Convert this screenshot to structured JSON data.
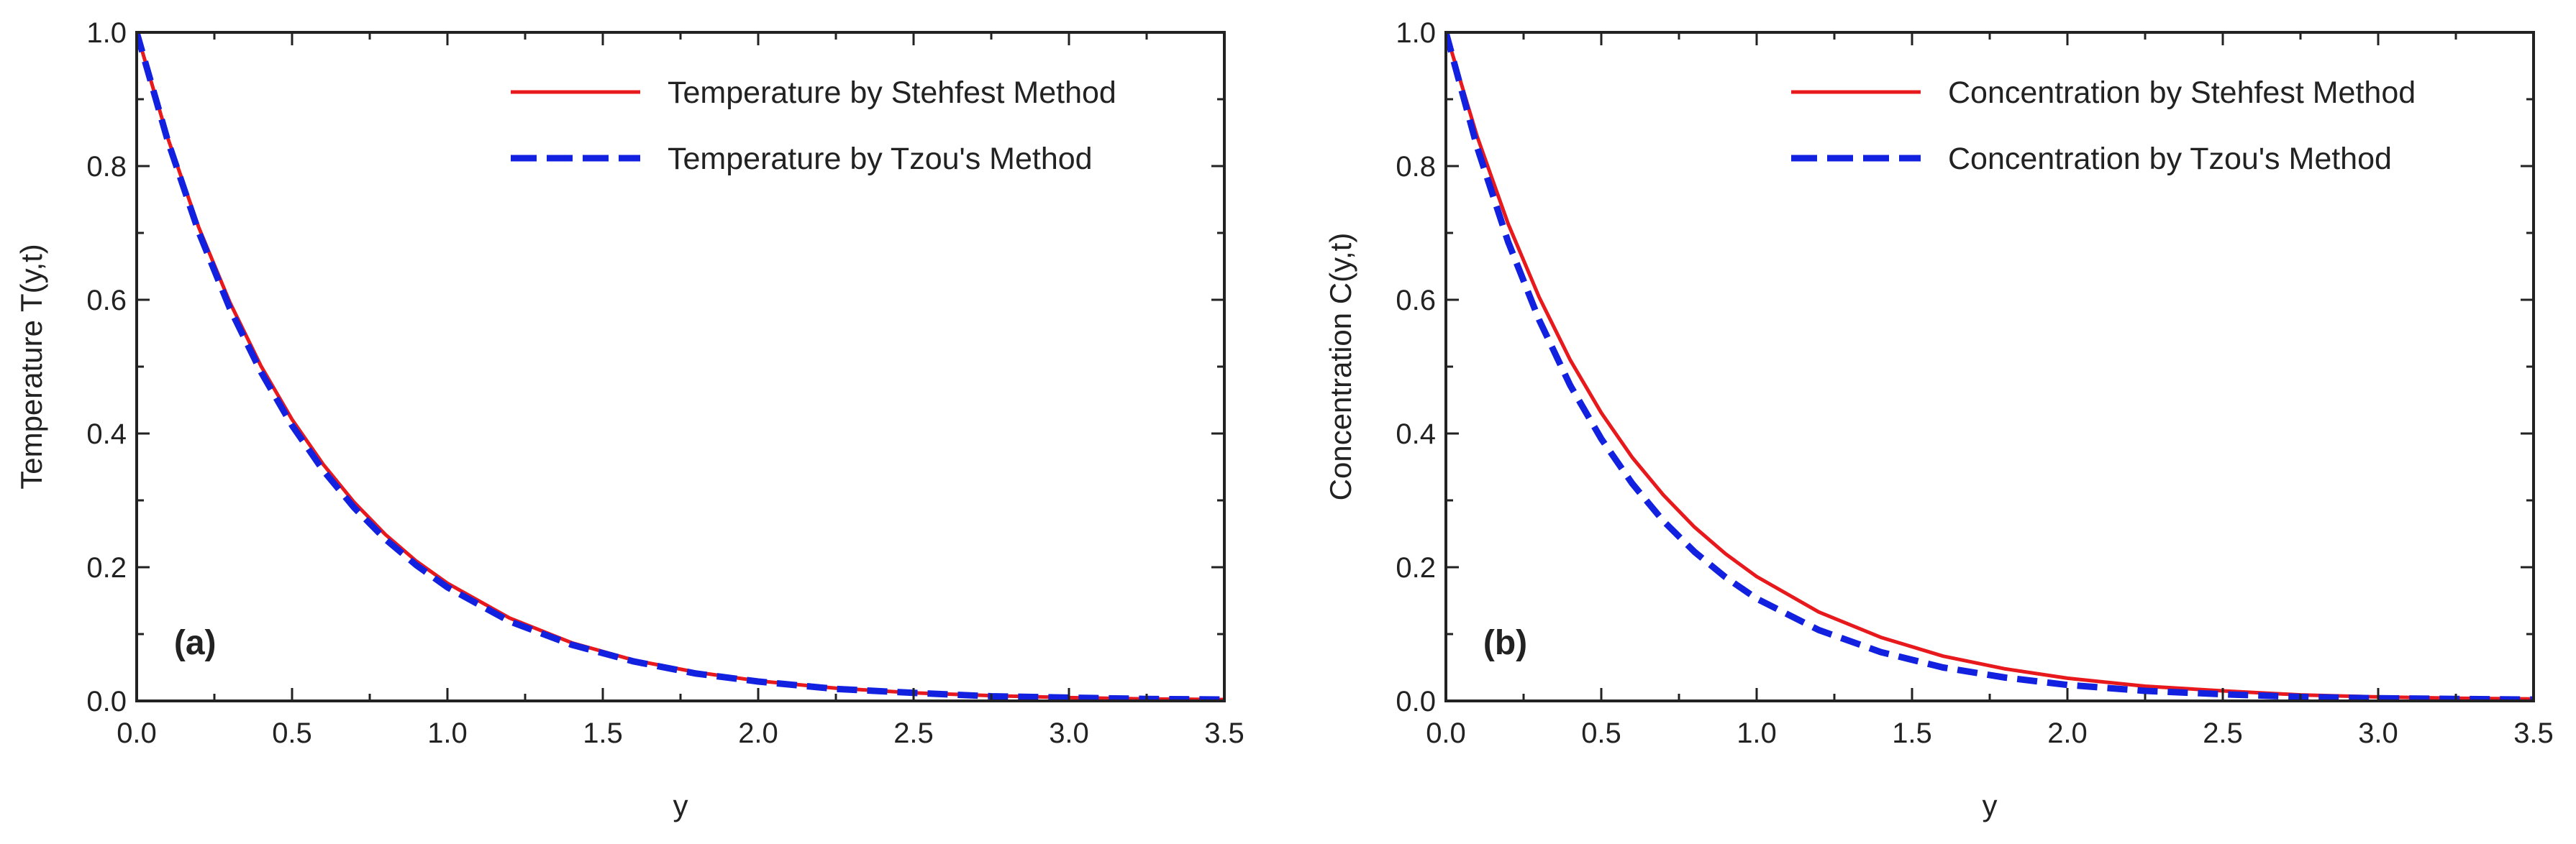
{
  "chart_data": [
    {
      "type": "line",
      "panel_label": "(a)",
      "xlabel": "y",
      "ylabel": "Temperature T(y,t)",
      "xlim": [
        0,
        3.5
      ],
      "ylim": [
        0,
        1.0
      ],
      "xticks": [
        "0.0",
        "0.5",
        "1.0",
        "1.5",
        "2.0",
        "2.5",
        "3.0",
        "3.5"
      ],
      "yticks": [
        "0.0",
        "0.2",
        "0.4",
        "0.6",
        "0.8",
        "1.0"
      ],
      "legend_position": "top-right",
      "x": [
        0,
        0.1,
        0.2,
        0.3,
        0.4,
        0.5,
        0.6,
        0.7,
        0.8,
        0.9,
        1.0,
        1.2,
        1.4,
        1.6,
        1.8,
        2.0,
        2.25,
        2.5,
        2.75,
        3.0,
        3.25,
        3.5
      ],
      "series": [
        {
          "name": "Temperature by Stehfest Method",
          "color": "#e8191c",
          "style": "solid",
          "values": [
            1.0,
            0.842,
            0.708,
            0.596,
            0.501,
            0.421,
            0.354,
            0.297,
            0.249,
            0.209,
            0.176,
            0.124,
            0.087,
            0.061,
            0.043,
            0.03,
            0.019,
            0.012,
            0.008,
            0.005,
            0.003,
            0.002
          ]
        },
        {
          "name": "Temperature by Tzou's Method",
          "color": "#1220e0",
          "style": "dashed",
          "values": [
            1.0,
            0.838,
            0.701,
            0.587,
            0.492,
            0.412,
            0.345,
            0.289,
            0.242,
            0.203,
            0.17,
            0.119,
            0.084,
            0.059,
            0.041,
            0.029,
            0.018,
            0.012,
            0.007,
            0.005,
            0.003,
            0.002
          ]
        }
      ]
    },
    {
      "type": "line",
      "panel_label": "(b)",
      "xlabel": "y",
      "ylabel": "Concentration C(y,t)",
      "xlim": [
        0,
        3.5
      ],
      "ylim": [
        0,
        1.0
      ],
      "xticks": [
        "0.0",
        "0.5",
        "1.0",
        "1.5",
        "2.0",
        "2.5",
        "3.0",
        "3.5"
      ],
      "yticks": [
        "0.0",
        "0.2",
        "0.4",
        "0.6",
        "0.8",
        "1.0"
      ],
      "legend_position": "top-right",
      "x": [
        0,
        0.1,
        0.2,
        0.3,
        0.4,
        0.5,
        0.6,
        0.7,
        0.8,
        0.9,
        1.0,
        1.2,
        1.4,
        1.6,
        1.8,
        2.0,
        2.25,
        2.5,
        2.75,
        3.0,
        3.25,
        3.5
      ],
      "series": [
        {
          "name": "Concentration by Stehfest Method",
          "color": "#e8191c",
          "style": "solid",
          "values": [
            1.0,
            0.845,
            0.714,
            0.604,
            0.51,
            0.431,
            0.364,
            0.308,
            0.26,
            0.22,
            0.186,
            0.133,
            0.095,
            0.067,
            0.048,
            0.034,
            0.022,
            0.015,
            0.009,
            0.006,
            0.004,
            0.003
          ]
        },
        {
          "name": "Concentration by Tzou's Method",
          "color": "#1220e0",
          "style": "dashed",
          "values": [
            1.0,
            0.829,
            0.687,
            0.57,
            0.472,
            0.392,
            0.325,
            0.269,
            0.223,
            0.185,
            0.153,
            0.106,
            0.073,
            0.05,
            0.035,
            0.024,
            0.015,
            0.01,
            0.006,
            0.004,
            0.003,
            0.002
          ]
        }
      ]
    }
  ]
}
